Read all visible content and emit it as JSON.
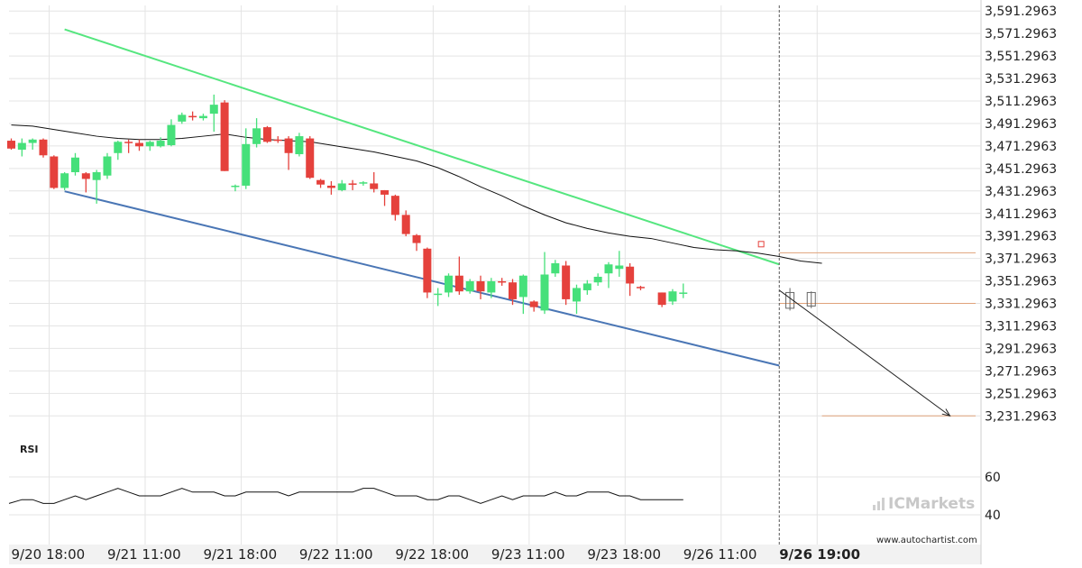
{
  "chart_data": {
    "type": "candlestick",
    "price_axis": {
      "ticks": [
        "3,591.2963",
        "3,571.2963",
        "3,551.2963",
        "3,531.2963",
        "3,511.2963",
        "3,491.2963",
        "3,471.2963",
        "3,451.2963",
        "3,431.2963",
        "3,411.2963",
        "3,391.2963",
        "3,371.2963",
        "3,351.2963",
        "3,331.2963",
        "3,311.2963",
        "3,291.2963",
        "3,271.2963",
        "3,251.2963",
        "3,231.2963"
      ],
      "ylim": [
        3224.3,
        3596.3
      ]
    },
    "time_axis": {
      "ticks": [
        {
          "label": "9/20 18:00",
          "index": 0
        },
        {
          "label": "9/21 11:00",
          "index": 9
        },
        {
          "label": "9/21 18:00",
          "index": 18
        },
        {
          "label": "9/22 11:00",
          "index": 27
        },
        {
          "label": "9/22 18:00",
          "index": 36
        },
        {
          "label": "9/23 11:00",
          "index": 45
        },
        {
          "label": "9/23 18:00",
          "index": 54
        },
        {
          "label": "9/26 11:00",
          "index": 63
        },
        {
          "label": "9/26 19:00",
          "index": 72,
          "bold": true
        }
      ]
    },
    "candles": [
      {
        "o": 3476,
        "h": 3478,
        "l": 3468,
        "c": 3469
      },
      {
        "o": 3468,
        "h": 3478,
        "l": 3462,
        "c": 3474
      },
      {
        "o": 3474,
        "h": 3478,
        "l": 3468,
        "c": 3477
      },
      {
        "o": 3477,
        "h": 3478,
        "l": 3461,
        "c": 3463
      },
      {
        "o": 3462,
        "h": 3463,
        "l": 3433,
        "c": 3434
      },
      {
        "o": 3434,
        "h": 3448,
        "l": 3432,
        "c": 3447
      },
      {
        "o": 3448,
        "h": 3465,
        "l": 3445,
        "c": 3461
      },
      {
        "o": 3447,
        "h": 3448,
        "l": 3430,
        "c": 3442
      },
      {
        "o": 3441,
        "h": 3450,
        "l": 3420,
        "c": 3448
      },
      {
        "o": 3445,
        "h": 3465,
        "l": 3442,
        "c": 3462
      },
      {
        "o": 3465,
        "h": 3476,
        "l": 3459,
        "c": 3475
      },
      {
        "o": 3475,
        "h": 3477,
        "l": 3465,
        "c": 3474
      },
      {
        "o": 3474,
        "h": 3477,
        "l": 3467,
        "c": 3471
      },
      {
        "o": 3471,
        "h": 3476,
        "l": 3467,
        "c": 3475
      },
      {
        "o": 3471,
        "h": 3479,
        "l": 3470,
        "c": 3476
      },
      {
        "o": 3472,
        "h": 3495,
        "l": 3471,
        "c": 3490
      },
      {
        "o": 3493,
        "h": 3501,
        "l": 3491,
        "c": 3499
      },
      {
        "o": 3498,
        "h": 3502,
        "l": 3494,
        "c": 3497
      },
      {
        "o": 3496,
        "h": 3500,
        "l": 3494,
        "c": 3498
      },
      {
        "o": 3500,
        "h": 3517,
        "l": 3484,
        "c": 3508
      },
      {
        "o": 3510,
        "h": 3512,
        "l": 3449,
        "c": 3449
      },
      {
        "o": 3435,
        "h": 3437,
        "l": 3431,
        "c": 3436
      },
      {
        "o": 3436,
        "h": 3487,
        "l": 3433,
        "c": 3473
      },
      {
        "o": 3473,
        "h": 3496,
        "l": 3470,
        "c": 3487
      },
      {
        "o": 3488,
        "h": 3489,
        "l": 3474,
        "c": 3475
      },
      {
        "o": 3477,
        "h": 3480,
        "l": 3474,
        "c": 3476
      },
      {
        "o": 3478,
        "h": 3480,
        "l": 3450,
        "c": 3465
      },
      {
        "o": 3464,
        "h": 3483,
        "l": 3462,
        "c": 3480
      },
      {
        "o": 3478,
        "h": 3480,
        "l": 3442,
        "c": 3443
      },
      {
        "o": 3441,
        "h": 3442,
        "l": 3434,
        "c": 3437
      },
      {
        "o": 3436,
        "h": 3440,
        "l": 3428,
        "c": 3434
      },
      {
        "o": 3432,
        "h": 3441,
        "l": 3431,
        "c": 3438
      },
      {
        "o": 3438,
        "h": 3441,
        "l": 3432,
        "c": 3437
      },
      {
        "o": 3438,
        "h": 3440,
        "l": 3436,
        "c": 3439
      },
      {
        "o": 3438,
        "h": 3448,
        "l": 3430,
        "c": 3433
      },
      {
        "o": 3432,
        "h": 3432,
        "l": 3418,
        "c": 3428
      },
      {
        "o": 3427,
        "h": 3428,
        "l": 3405,
        "c": 3410
      },
      {
        "o": 3410,
        "h": 3414,
        "l": 3391,
        "c": 3393
      },
      {
        "o": 3392,
        "h": 3393,
        "l": 3378,
        "c": 3385
      },
      {
        "o": 3380,
        "h": 3381,
        "l": 3336,
        "c": 3341
      },
      {
        "o": 3340,
        "h": 3345,
        "l": 3329,
        "c": 3340
      },
      {
        "o": 3341,
        "h": 3358,
        "l": 3337,
        "c": 3356
      },
      {
        "o": 3356,
        "h": 3373,
        "l": 3339,
        "c": 3342
      },
      {
        "o": 3342,
        "h": 3353,
        "l": 3340,
        "c": 3351
      },
      {
        "o": 3351,
        "h": 3356,
        "l": 3335,
        "c": 3342
      },
      {
        "o": 3341,
        "h": 3354,
        "l": 3336,
        "c": 3351
      },
      {
        "o": 3351,
        "h": 3354,
        "l": 3347,
        "c": 3350
      },
      {
        "o": 3350,
        "h": 3353,
        "l": 3330,
        "c": 3335
      },
      {
        "o": 3337,
        "h": 3357,
        "l": 3322,
        "c": 3356
      },
      {
        "o": 3333,
        "h": 3334,
        "l": 3324,
        "c": 3328
      },
      {
        "o": 3325,
        "h": 3377,
        "l": 3322,
        "c": 3357
      },
      {
        "o": 3358,
        "h": 3370,
        "l": 3355,
        "c": 3367
      },
      {
        "o": 3365,
        "h": 3369,
        "l": 3330,
        "c": 3335
      },
      {
        "o": 3333,
        "h": 3348,
        "l": 3322,
        "c": 3345
      },
      {
        "o": 3343,
        "h": 3352,
        "l": 3339,
        "c": 3349
      },
      {
        "o": 3350,
        "h": 3358,
        "l": 3347,
        "c": 3355
      },
      {
        "o": 3358,
        "h": 3368,
        "l": 3345,
        "c": 3366
      },
      {
        "o": 3362,
        "h": 3378,
        "l": 3355,
        "c": 3365
      },
      {
        "o": 3364,
        "h": 3367,
        "l": 3338,
        "c": 3349
      },
      {
        "o": 3346,
        "h": 3347,
        "l": 3343,
        "c": 3345
      },
      {
        "o": 3341,
        "h": 3341,
        "l": 3328,
        "c": 3330
      },
      {
        "o": 3333,
        "h": 3344,
        "l": 3330,
        "c": 3342
      },
      {
        "o": 3341,
        "h": 3349,
        "l": 3336,
        "c": 3341
      }
    ],
    "candle_slots": [
      0,
      1,
      2,
      3,
      4,
      5,
      6,
      7,
      8,
      9,
      10,
      11,
      12,
      13,
      14,
      15,
      16,
      17,
      18,
      19,
      20,
      21,
      22,
      23,
      24,
      25,
      26,
      27,
      28,
      29,
      30,
      31,
      32,
      33,
      34,
      35,
      36,
      37,
      38,
      39,
      40,
      41,
      42,
      43,
      44,
      45,
      46,
      47,
      48,
      49,
      50,
      51,
      52,
      53,
      54,
      55,
      56,
      57,
      58,
      59,
      61,
      62,
      63
    ],
    "moving_average": [
      {
        "i": 0,
        "v": 3490
      },
      {
        "i": 2,
        "v": 3489
      },
      {
        "i": 4,
        "v": 3486
      },
      {
        "i": 6,
        "v": 3483
      },
      {
        "i": 8,
        "v": 3480
      },
      {
        "i": 10,
        "v": 3478
      },
      {
        "i": 12,
        "v": 3477
      },
      {
        "i": 14,
        "v": 3477
      },
      {
        "i": 16,
        "v": 3478
      },
      {
        "i": 18,
        "v": 3480
      },
      {
        "i": 20,
        "v": 3482
      },
      {
        "i": 22,
        "v": 3479
      },
      {
        "i": 24,
        "v": 3477
      },
      {
        "i": 26,
        "v": 3476
      },
      {
        "i": 28,
        "v": 3475
      },
      {
        "i": 30,
        "v": 3472
      },
      {
        "i": 32,
        "v": 3469
      },
      {
        "i": 34,
        "v": 3466
      },
      {
        "i": 36,
        "v": 3462
      },
      {
        "i": 38,
        "v": 3458
      },
      {
        "i": 40,
        "v": 3452
      },
      {
        "i": 42,
        "v": 3444
      },
      {
        "i": 44,
        "v": 3435
      },
      {
        "i": 46,
        "v": 3427
      },
      {
        "i": 48,
        "v": 3418
      },
      {
        "i": 50,
        "v": 3410
      },
      {
        "i": 52,
        "v": 3403
      },
      {
        "i": 54,
        "v": 3398
      },
      {
        "i": 56,
        "v": 3394
      },
      {
        "i": 58,
        "v": 3391
      },
      {
        "i": 60,
        "v": 3389
      },
      {
        "i": 62,
        "v": 3385
      },
      {
        "i": 64,
        "v": 3381
      },
      {
        "i": 66,
        "v": 3379
      },
      {
        "i": 68,
        "v": 3378
      },
      {
        "i": 70,
        "v": 3376
      },
      {
        "i": 72,
        "v": 3373
      },
      {
        "i": 74,
        "v": 3369
      },
      {
        "i": 76,
        "v": 3367
      }
    ],
    "resistance_line": {
      "from": {
        "i": 5,
        "v": 3575
      },
      "to": {
        "i": 72,
        "v": 3366
      },
      "color": "#55e67f"
    },
    "support_line": {
      "from": {
        "i": 5,
        "v": 3431
      },
      "to": {
        "i": 72,
        "v": 3276
      },
      "color": "#4a76b5"
    },
    "projection_arrow": {
      "from": {
        "i": 72,
        "v": 3343
      },
      "to": {
        "i": 88,
        "v": 3231.3
      },
      "color": "#222222"
    },
    "levels": [
      {
        "v": 3376.3,
        "from_i": 72,
        "color": "#e0a27a"
      },
      {
        "v": 3331.3,
        "from_i": 72,
        "color": "#e0a27a"
      },
      {
        "v": 3231.3,
        "from_i": 76,
        "color": "#e0a27a"
      }
    ],
    "event_line": {
      "i": 72,
      "label": "9/26 19:00"
    },
    "rsi": {
      "label": "RSI",
      "ticks": [
        60,
        40
      ],
      "ylim": [
        30,
        70
      ],
      "values": [
        46,
        48,
        48,
        46,
        46,
        48,
        50,
        48,
        50,
        52,
        54,
        52,
        50,
        50,
        50,
        52,
        54,
        52,
        52,
        52,
        50,
        50,
        52,
        52,
        52,
        52,
        50,
        52,
        52,
        52,
        52,
        52,
        52,
        54,
        54,
        52,
        50,
        50,
        50,
        48,
        48,
        50,
        50,
        48,
        46,
        48,
        50,
        48,
        50,
        50,
        50,
        52,
        50,
        50,
        52,
        52,
        52,
        50,
        50,
        48,
        48,
        48,
        48,
        48
      ]
    },
    "colors": {
      "bull": "#46e07a",
      "bear": "#e5413c",
      "grid": "#e4e4e4"
    }
  },
  "branding": {
    "logo_text": "ICMarkets",
    "url": "www.autochartist.com"
  }
}
